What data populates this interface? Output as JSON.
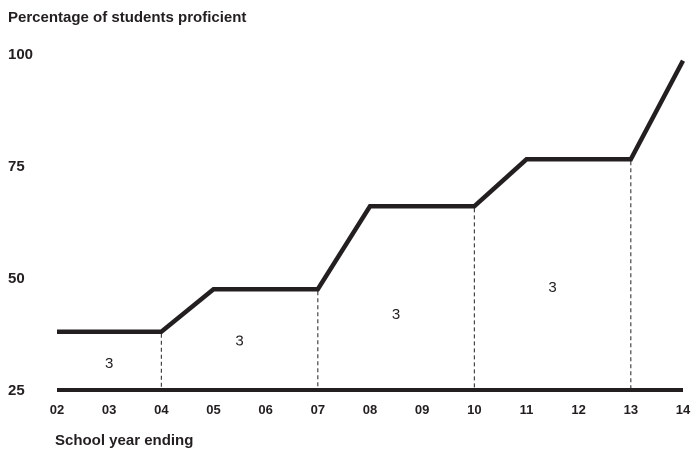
{
  "chart_data": {
    "type": "line",
    "title": "Percentage of students proficient",
    "xlabel": "School year ending",
    "ylabel": "",
    "ylim": [
      25,
      100
    ],
    "yticks": [
      "100",
      "75",
      "50",
      "25"
    ],
    "x_ticks": [
      "02",
      "03",
      "04",
      "05",
      "06",
      "07",
      "08",
      "09",
      "10",
      "11",
      "12",
      "13",
      "14"
    ],
    "series": [
      {
        "x": [
          "02",
          "04",
          "05",
          "07",
          "08",
          "10",
          "11",
          "13",
          "14"
        ],
        "values": [
          38,
          38,
          47.5,
          47.5,
          66,
          66,
          76.5,
          76.5,
          98.5
        ]
      }
    ],
    "intervals": [
      {
        "start": "02",
        "end": "04",
        "label": "3",
        "label_y": 31
      },
      {
        "start": "04",
        "end": "07",
        "label": "3",
        "label_y": 36
      },
      {
        "start": "07",
        "end": "10",
        "label": "3",
        "label_y": 42
      },
      {
        "start": "10",
        "end": "13",
        "label": "3",
        "label_y": 48
      }
    ],
    "grid": false,
    "colors": {
      "line": "#231f20",
      "text": "#231f20"
    }
  }
}
